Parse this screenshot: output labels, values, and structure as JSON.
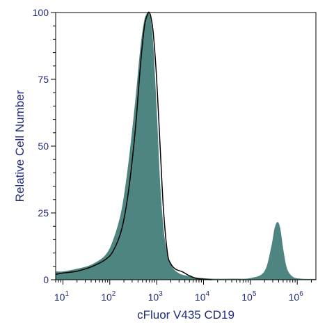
{
  "chart_data": {
    "type": "area",
    "title": "",
    "xlabel": "cFluor V435 CD19",
    "ylabel": "Relative Cell Number",
    "x_scale": "log",
    "xlim": [
      7,
      2500000
    ],
    "ylim": [
      0,
      100
    ],
    "x_ticks": [
      {
        "base": "10",
        "exp": "1",
        "value": 10
      },
      {
        "base": "10",
        "exp": "2",
        "value": 100
      },
      {
        "base": "10",
        "exp": "3",
        "value": 1000
      },
      {
        "base": "10",
        "exp": "4",
        "value": 10000
      },
      {
        "base": "10",
        "exp": "5",
        "value": 100000
      },
      {
        "base": "10",
        "exp": "6",
        "value": 1000000
      }
    ],
    "y_ticks": [
      {
        "label": "0",
        "value": 0
      },
      {
        "label": "25",
        "value": 25
      },
      {
        "label": "50",
        "value": 50
      },
      {
        "label": "75",
        "value": 75
      },
      {
        "label": "100",
        "value": 100
      }
    ],
    "grid": false,
    "legend": "none",
    "series": [
      {
        "style": "filled",
        "color": "#4f8580",
        "x": [
          7,
          10,
          20,
          40,
          80,
          120,
          180,
          250,
          350,
          450,
          550,
          650,
          700,
          760,
          850,
          1000,
          1200,
          1500,
          2000,
          3000,
          5000,
          8000,
          15000,
          40000,
          100000,
          200000,
          280000,
          330000,
          380000,
          430000,
          500000,
          600000,
          800000,
          1200000,
          2500000
        ],
        "y": [
          3,
          3,
          4,
          5.5,
          9,
          15,
          26,
          43,
          66,
          86,
          97,
          100,
          99,
          96,
          86,
          62,
          33,
          14,
          5.5,
          2.3,
          1.2,
          0.6,
          0.3,
          0.3,
          0.5,
          3,
          12,
          19,
          21.5,
          19,
          11,
          4,
          1,
          0.3,
          0.2
        ]
      },
      {
        "style": "line",
        "color": "#000000",
        "x": [
          7,
          10,
          20,
          40,
          80,
          120,
          180,
          250,
          350,
          450,
          550,
          650,
          700,
          760,
          850,
          1000,
          1200,
          1400,
          1700,
          2000,
          2500,
          3500,
          5000,
          7000,
          10000,
          15000
        ],
        "y": [
          2,
          2.5,
          3.2,
          4.8,
          7.5,
          11,
          19,
          33,
          56,
          80,
          95,
          99.5,
          100,
          98,
          92,
          75,
          48,
          26,
          10,
          6,
          4,
          3,
          1.5,
          0.5,
          0.2,
          0
        ]
      }
    ]
  }
}
